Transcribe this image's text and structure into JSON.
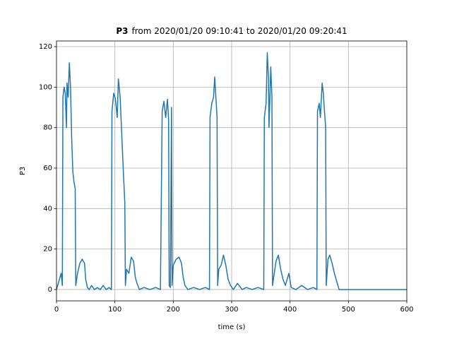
{
  "chart_data": {
    "type": "line",
    "title_bold": "P3",
    "title": "from 2020/01/20 09:10:41 to 2020/01/20 09:20:41",
    "xlabel": "time (s)",
    "ylabel": "P3",
    "xlim": [
      0,
      600
    ],
    "xticks": [
      0,
      100,
      200,
      300,
      400,
      500,
      600
    ],
    "ylim": [
      -5.6,
      122.8
    ],
    "yticks": [
      0,
      20,
      40,
      60,
      80,
      100,
      120
    ],
    "grid": true,
    "series": [
      {
        "name": "P3",
        "color": "#1f77b4",
        "x": [
          0,
          8,
          10,
          11,
          13,
          15,
          17,
          18,
          20,
          22,
          24,
          26,
          28,
          30,
          32,
          33,
          36,
          40,
          44,
          48,
          50,
          53,
          56,
          60,
          65,
          70,
          75,
          80,
          85,
          90,
          94,
          95,
          98,
          101,
          104,
          106,
          109,
          112,
          115,
          117,
          118,
          120,
          124,
          128,
          132,
          135,
          138,
          142,
          150,
          160,
          170,
          178,
          181,
          184,
          187,
          190,
          192,
          193,
          195,
          197,
          198,
          200,
          205,
          210,
          214,
          217,
          220,
          225,
          235,
          245,
          255,
          262,
          263,
          266,
          269,
          271,
          273,
          275,
          276,
          278,
          282,
          286,
          290,
          294,
          298,
          303,
          310,
          318,
          325,
          335,
          345,
          355,
          356,
          359,
          361,
          363,
          364,
          367,
          369,
          370,
          373,
          376,
          380,
          384,
          388,
          392,
          398,
          402,
          410,
          420,
          430,
          440,
          446,
          447,
          450,
          452,
          455,
          457,
          459,
          461,
          462,
          465,
          468,
          472,
          476,
          480,
          484,
          600
        ],
        "values": [
          0,
          8,
          2,
          95,
          100,
          97,
          80,
          102,
          95,
          112,
          100,
          75,
          58,
          53,
          50,
          2,
          8,
          13,
          15,
          13,
          5,
          1,
          0,
          2,
          0,
          1,
          0,
          2,
          0,
          1,
          0,
          88,
          97,
          94,
          85,
          104,
          95,
          75,
          55,
          43,
          2,
          10,
          8,
          16,
          14,
          6,
          3,
          0,
          1,
          0,
          1,
          0,
          88,
          93,
          85,
          94,
          84,
          2,
          1,
          90,
          2,
          12,
          15,
          16,
          13,
          6,
          2,
          0,
          1,
          0,
          1,
          0,
          85,
          92,
          95,
          105,
          95,
          85,
          2,
          10,
          12,
          17,
          12,
          5,
          2,
          0,
          3,
          0,
          1,
          0,
          1,
          0,
          85,
          92,
          117,
          105,
          80,
          110,
          95,
          2,
          8,
          14,
          17,
          10,
          5,
          2,
          8,
          1,
          0,
          2,
          0,
          1,
          0,
          88,
          92,
          85,
          102,
          97,
          88,
          80,
          2,
          15,
          17,
          13,
          8,
          4,
          0,
          0
        ]
      }
    ]
  }
}
